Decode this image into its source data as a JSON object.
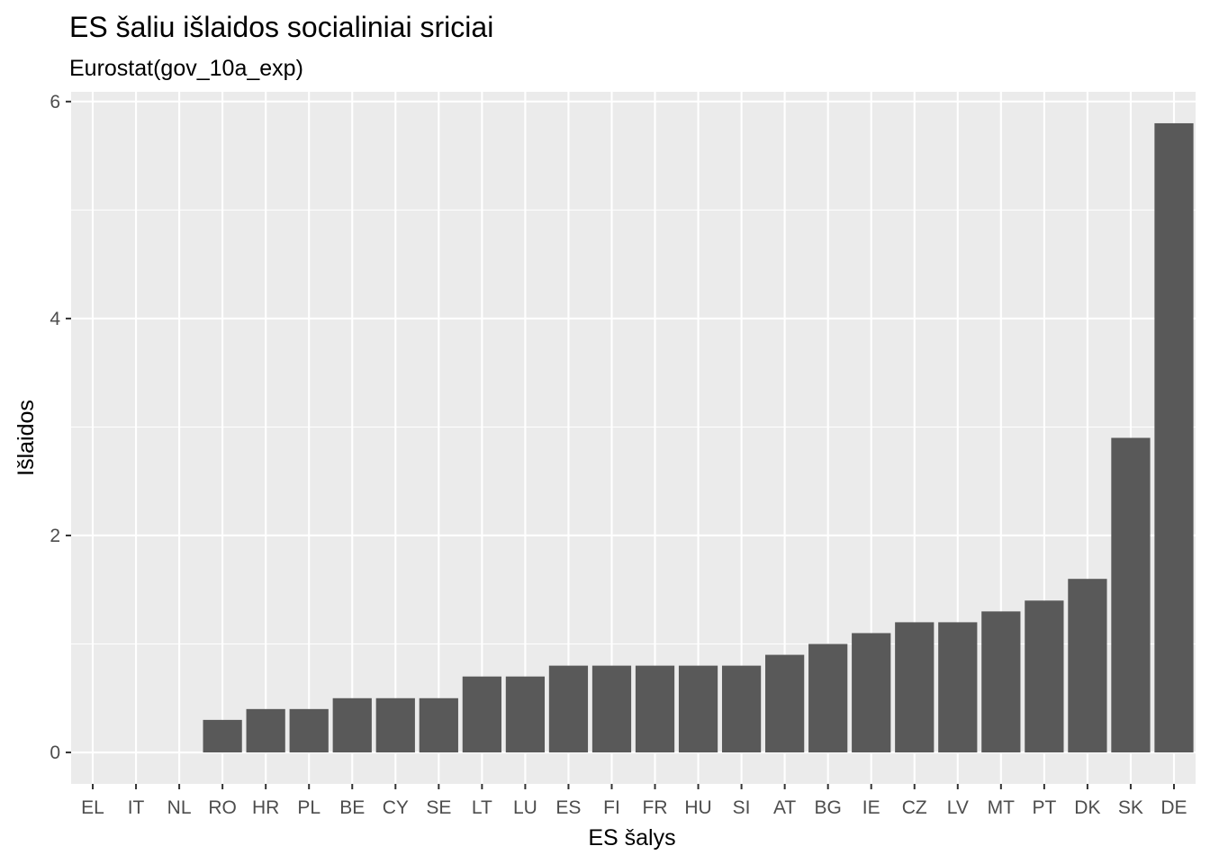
{
  "chart_data": {
    "type": "bar",
    "title": "ES šaliu išlaidos socialiniai sriciai",
    "subtitle": "Eurostat(gov_10a_exp)",
    "xlabel": "ES šalys",
    "ylabel": "Išlaidos",
    "categories": [
      "EL",
      "IT",
      "NL",
      "RO",
      "HR",
      "PL",
      "BE",
      "CY",
      "SE",
      "LT",
      "LU",
      "ES",
      "FI",
      "FR",
      "HU",
      "SI",
      "AT",
      "BG",
      "IE",
      "CZ",
      "LV",
      "MT",
      "PT",
      "DK",
      "SK",
      "DE"
    ],
    "values": [
      0,
      0,
      0,
      0.3,
      0.4,
      0.4,
      0.5,
      0.5,
      0.5,
      0.7,
      0.7,
      0.8,
      0.8,
      0.8,
      0.8,
      0.8,
      0.9,
      1.0,
      1.1,
      1.2,
      1.2,
      1.3,
      1.4,
      1.6,
      2.9,
      5.8
    ],
    "yticks": [
      0,
      2,
      4,
      6
    ],
    "ytick_labels": [
      "0",
      "2",
      "4",
      "6"
    ],
    "ylim": [
      -0.29,
      6.09
    ],
    "grid": true,
    "legend": "none",
    "bar_color": "#595959",
    "panel_color": "#ebebeb"
  }
}
